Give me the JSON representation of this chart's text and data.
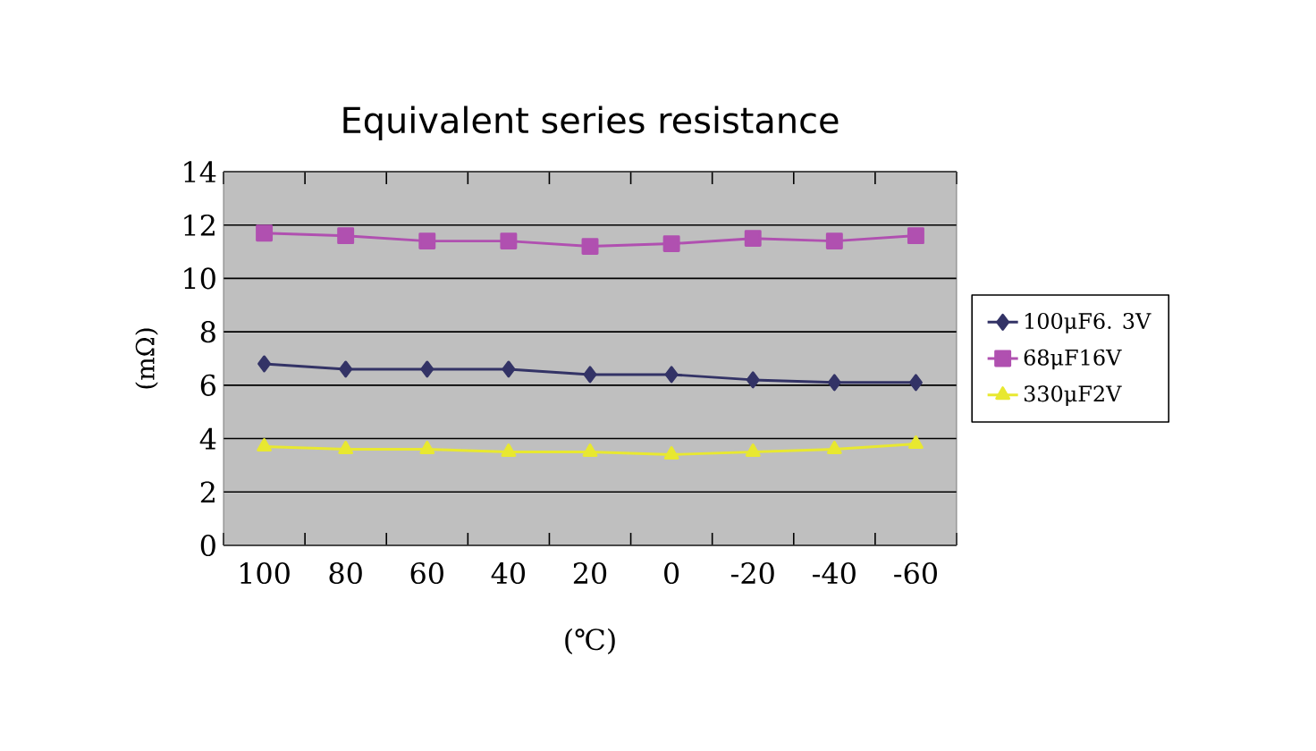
{
  "chart_data": {
    "type": "line",
    "title": "Equivalent series resistance",
    "xlabel": "(℃)",
    "ylabel": "(mΩ)",
    "categories": [
      "100",
      "80",
      "60",
      "40",
      "20",
      "0",
      "-20",
      "-40",
      "-60"
    ],
    "series": [
      {
        "name": "100μF6. 3V",
        "color": "#333366",
        "marker": "diamond",
        "values": [
          6.8,
          6.6,
          6.6,
          6.6,
          6.4,
          6.4,
          6.2,
          6.1,
          6.1
        ]
      },
      {
        "name": "68μF16V",
        "color": "#b050b0",
        "marker": "square",
        "values": [
          11.7,
          11.6,
          11.4,
          11.4,
          11.2,
          11.3,
          11.5,
          11.4,
          11.6
        ]
      },
      {
        "name": "330μF2V",
        "color": "#e8e830",
        "marker": "triangle",
        "values": [
          3.7,
          3.6,
          3.6,
          3.5,
          3.5,
          3.4,
          3.5,
          3.6,
          3.8
        ]
      }
    ],
    "ylim": [
      0,
      14
    ],
    "yticks": [
      0,
      2,
      4,
      6,
      8,
      10,
      12,
      14
    ],
    "grid": "y",
    "legend": "right",
    "line_style": "solid"
  }
}
